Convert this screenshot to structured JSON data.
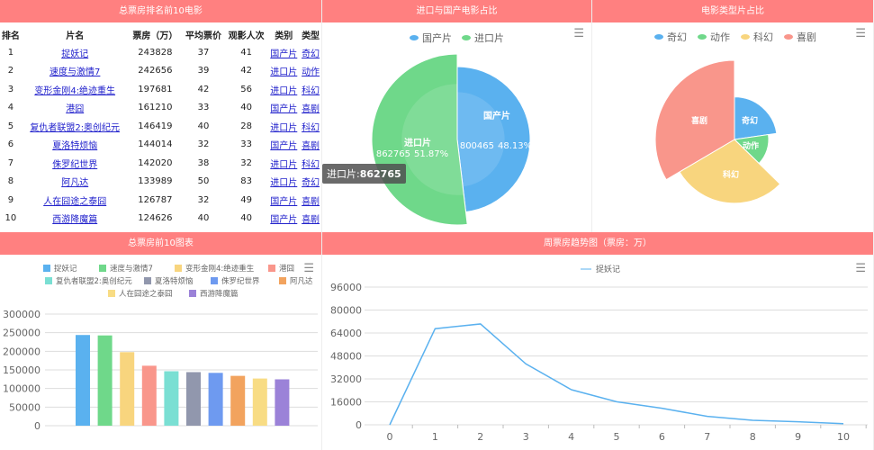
{
  "panels": {
    "top10_table": "总票房排名前10电影",
    "import_share": "进口与国产电影占比",
    "genre_share": "电影类型片占比",
    "top10_chart": "总票房前10图表",
    "weekly_trend": "周票房趋势图（票房：万）"
  },
  "table": {
    "headers": [
      "排名",
      "片名",
      "票房（万）",
      "平均票价",
      "观影人次",
      "类别",
      "类型"
    ],
    "rows": [
      [
        "1",
        "捉妖记",
        "243828",
        "37",
        "41",
        "国产片",
        "奇幻"
      ],
      [
        "2",
        "速度与激情7",
        "242656",
        "39",
        "42",
        "进口片",
        "动作"
      ],
      [
        "3",
        "变形金刚4:绝迹重生",
        "197681",
        "42",
        "56",
        "进口片",
        "科幻"
      ],
      [
        "4",
        "港囧",
        "161210",
        "33",
        "40",
        "国产片",
        "喜剧"
      ],
      [
        "5",
        "复仇者联盟2:奥创纪元",
        "146419",
        "40",
        "28",
        "进口片",
        "科幻"
      ],
      [
        "6",
        "夏洛特烦恼",
        "144014",
        "32",
        "33",
        "国产片",
        "喜剧"
      ],
      [
        "7",
        "侏罗纪世界",
        "142020",
        "38",
        "32",
        "进口片",
        "科幻"
      ],
      [
        "8",
        "阿凡达",
        "133989",
        "50",
        "83",
        "进口片",
        "奇幻"
      ],
      [
        "9",
        "人在囧途之泰囧",
        "126787",
        "32",
        "49",
        "国产片",
        "喜剧"
      ],
      [
        "10",
        "西游降魔篇",
        "124626",
        "40",
        "40",
        "国产片",
        "喜剧"
      ]
    ]
  },
  "tooltip": {
    "label": "进口片:",
    "value": "862765"
  },
  "chart_data": [
    {
      "type": "pie",
      "legend": [
        "国产片",
        "进口片"
      ],
      "values": [
        800465,
        862765
      ],
      "percents": [
        "48.13%",
        "51.87%"
      ],
      "colors": [
        "#5ab1ef",
        "#6fd88a"
      ],
      "highlighted": "进口片"
    },
    {
      "type": "pie",
      "rose": true,
      "legend": [
        "奇幻",
        "动作",
        "科幻",
        "喜剧"
      ],
      "values": [
        377817,
        242656,
        486120,
        556637
      ],
      "colors": [
        "#5ab1ef",
        "#6fd88a",
        "#f8d57e",
        "#f9968b"
      ]
    },
    {
      "type": "bar",
      "categories": [
        "捉妖记",
        "速度与激情7",
        "变形金刚4:绝迹重生",
        "港囧",
        "复仇者联盟2:奥创纪元",
        "夏洛特烦恼",
        "侏罗纪世界",
        "阿凡达",
        "人在囧途之泰囧",
        "西游降魔篇"
      ],
      "values": [
        243828,
        242656,
        197681,
        161210,
        146419,
        144014,
        142020,
        133989,
        126787,
        124626
      ],
      "colors": [
        "#5ab1ef",
        "#6fd88a",
        "#f8d57e",
        "#f9968b",
        "#7adfd3",
        "#9197ad",
        "#6e9af0",
        "#f2a35e",
        "#f8dc84",
        "#9b82d8"
      ],
      "yticks": [
        "0",
        "50000",
        "100000",
        "150000",
        "200000",
        "250000",
        "300000"
      ],
      "ylim": [
        0,
        300000
      ],
      "legend": "top"
    },
    {
      "type": "line",
      "series": [
        {
          "name": "捉妖记",
          "x": [
            0,
            1,
            2,
            3,
            4,
            5,
            6,
            7,
            8,
            9,
            10
          ],
          "values": [
            0,
            67000,
            70300,
            42500,
            24500,
            16100,
            11500,
            5900,
            3100,
            2100,
            800
          ]
        }
      ],
      "yticks": [
        "0",
        "16000",
        "32000",
        "48000",
        "64000",
        "80000",
        "96000"
      ],
      "xticks": [
        "0",
        "1",
        "2",
        "3",
        "4",
        "5",
        "6",
        "7",
        "8",
        "9",
        "10"
      ],
      "ylim": [
        0,
        96000
      ],
      "color": "#5ab1ef",
      "legend": "top"
    }
  ]
}
